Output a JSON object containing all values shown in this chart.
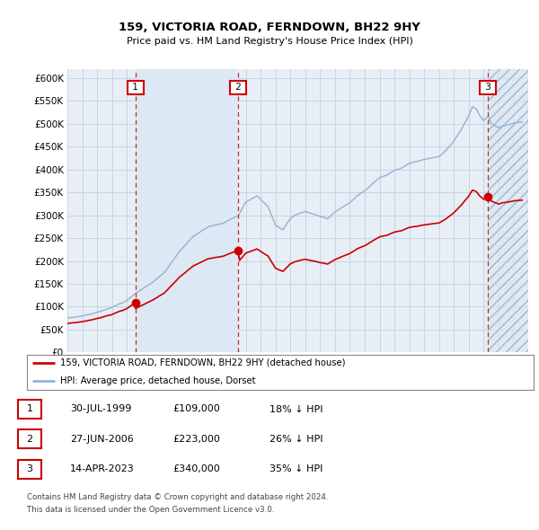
{
  "title": "159, VICTORIA ROAD, FERNDOWN, BH22 9HY",
  "subtitle": "Price paid vs. HM Land Registry's House Price Index (HPI)",
  "ylim": [
    0,
    620000
  ],
  "yticks": [
    0,
    50000,
    100000,
    150000,
    200000,
    250000,
    300000,
    350000,
    400000,
    450000,
    500000,
    550000,
    600000
  ],
  "sale_dates_t": [
    1999.583,
    2006.5,
    2023.292
  ],
  "sale_prices": [
    109000,
    223000,
    340000
  ],
  "sale_labels": [
    "1",
    "2",
    "3"
  ],
  "hpi_color": "#90b4d4",
  "price_color": "#cc0000",
  "marker_box_color": "#cc0000",
  "grid_color": "#c8d4e0",
  "background_color": "#e8eef6",
  "shade_color": "#dce8f4",
  "hatch_color": "#c8d8e8",
  "legend_label_price": "159, VICTORIA ROAD, FERNDOWN, BH22 9HY (detached house)",
  "legend_label_hpi": "HPI: Average price, detached house, Dorset",
  "table_rows": [
    [
      "1",
      "30-JUL-1999",
      "£109,000",
      "18% ↓ HPI"
    ],
    [
      "2",
      "27-JUN-2006",
      "£223,000",
      "26% ↓ HPI"
    ],
    [
      "3",
      "14-APR-2023",
      "£340,000",
      "35% ↓ HPI"
    ]
  ],
  "footnote1": "Contains HM Land Registry data © Crown copyright and database right 2024.",
  "footnote2": "This data is licensed under the Open Government Licence v3.0."
}
